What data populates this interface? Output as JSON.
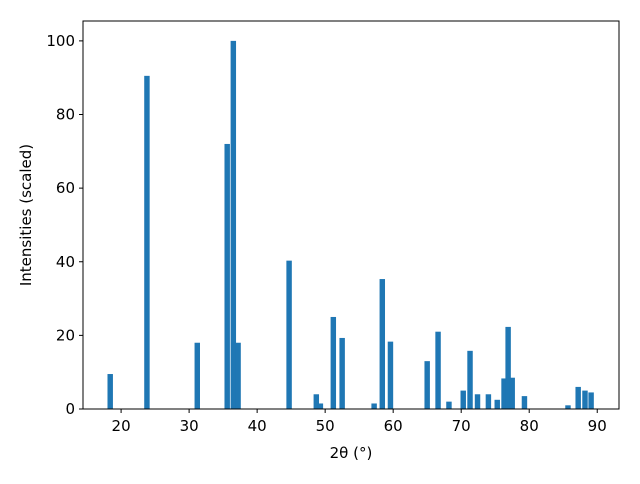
{
  "chart_data": {
    "type": "bar",
    "xlabel": "2θ (°)",
    "ylabel": "Intensities (scaled)",
    "x": [
      18.4,
      23.8,
      31.2,
      35.6,
      36.5,
      37.2,
      44.7,
      48.7,
      49.3,
      51.2,
      52.5,
      57.2,
      58.4,
      59.6,
      65.0,
      66.6,
      68.2,
      70.3,
      71.3,
      72.4,
      74.0,
      75.3,
      76.3,
      76.9,
      77.5,
      79.3,
      85.7,
      87.2,
      88.2,
      89.1
    ],
    "values": [
      9.5,
      90.5,
      18,
      72,
      100,
      18,
      40.3,
      4,
      1.5,
      25,
      19.3,
      1.5,
      35.3,
      18.3,
      13,
      21,
      2,
      5,
      15.8,
      4,
      4,
      2.5,
      8.3,
      22.3,
      8.5,
      3.5,
      1,
      6,
      5,
      4.5
    ],
    "color": "#1f77b4",
    "xlim": [
      14.4,
      93.2
    ],
    "ylim": [
      0,
      105.4
    ],
    "xticks": [
      20,
      30,
      40,
      50,
      60,
      70,
      80,
      90
    ],
    "yticks": [
      0,
      20,
      40,
      60,
      80,
      100
    ]
  }
}
